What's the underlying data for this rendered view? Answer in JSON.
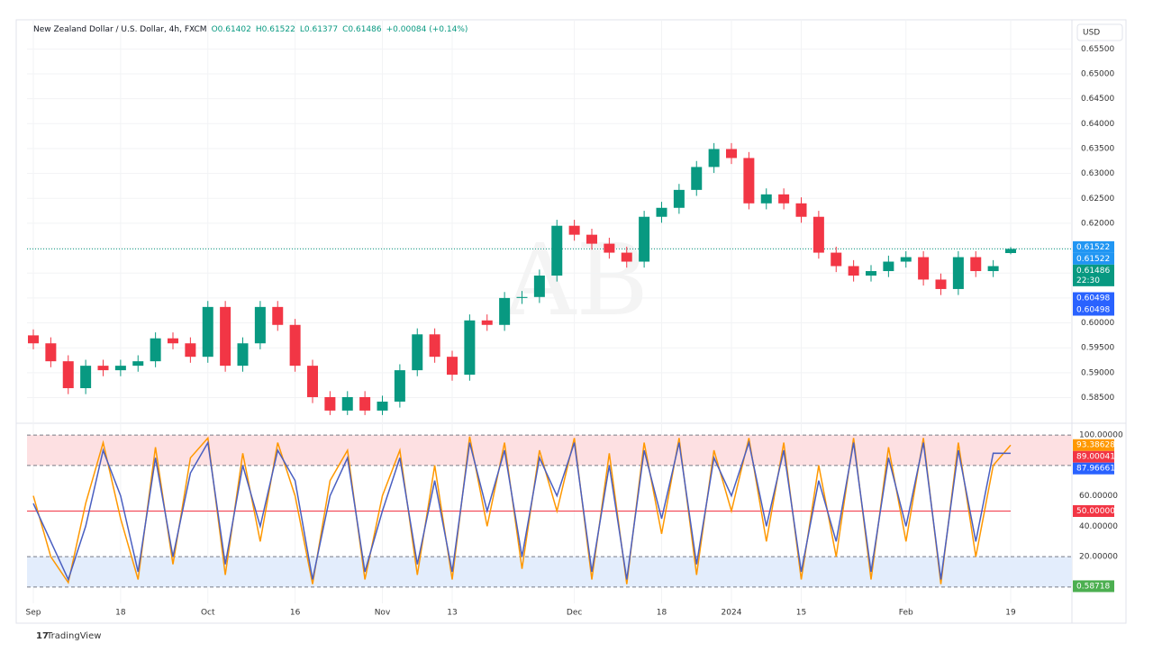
{
  "header": {
    "symbol": "New Zealand Dollar / U.S. Dollar, 4h, FXCM",
    "ohlc": [
      "O0.61402",
      "H0.61522",
      "L0.61377",
      "C0.61486"
    ],
    "change": "+0.00084 (+0.14%)"
  },
  "currency": "USD",
  "watermark": "AB",
  "brand": "TradingView",
  "chart_data": [
    {
      "type": "candlestick",
      "categories": [
        "Sep",
        null,
        null,
        null,
        null,
        "18",
        null,
        null,
        null,
        null,
        "Oct",
        null,
        null,
        null,
        null,
        "16",
        null,
        null,
        null,
        null,
        "Nov",
        null,
        null,
        null,
        "13",
        null,
        null,
        null,
        null,
        null,
        null,
        "Dec",
        null,
        null,
        null,
        null,
        "18",
        null,
        null,
        null,
        "2024",
        null,
        null,
        null,
        "15",
        null,
        null,
        null,
        null,
        null,
        "Feb",
        null,
        null,
        null,
        null,
        null,
        "19"
      ],
      "open": [
        0.5975,
        0.5959,
        0.5923,
        0.5869,
        0.5914,
        0.5905,
        0.5914,
        0.5923,
        0.5969,
        0.5959,
        0.5932,
        0.6032,
        0.5914,
        0.5959,
        0.6032,
        0.5996,
        0.5914,
        0.5851,
        0.5824,
        0.5851,
        0.5824,
        0.5842,
        0.5905,
        0.5977,
        0.5932,
        0.5896,
        0.6005,
        0.5996,
        0.605,
        0.6052,
        0.6095,
        0.6195,
        0.6177,
        0.6159,
        0.6141,
        0.6123,
        0.6213,
        0.6231,
        0.6267,
        0.6313,
        0.6349,
        0.6331,
        0.624,
        0.6258,
        0.624,
        0.6213,
        0.6141,
        0.6114,
        0.6095,
        0.6104,
        0.6123,
        0.6132,
        0.6087,
        0.6068,
        0.6132,
        0.6104,
        0.61402
      ],
      "high": [
        0.5987,
        0.5971,
        0.5935,
        0.5926,
        0.5926,
        0.5926,
        0.5935,
        0.5981,
        0.5981,
        0.5971,
        0.6044,
        0.6044,
        0.5971,
        0.6044,
        0.6044,
        0.6008,
        0.5926,
        0.5863,
        0.5863,
        0.5863,
        0.5854,
        0.5917,
        0.5989,
        0.5989,
        0.5944,
        0.6017,
        0.6017,
        0.6062,
        0.6064,
        0.6107,
        0.6207,
        0.6207,
        0.6189,
        0.6171,
        0.6153,
        0.6225,
        0.6243,
        0.6279,
        0.6325,
        0.6361,
        0.6361,
        0.6343,
        0.627,
        0.627,
        0.6252,
        0.6225,
        0.6153,
        0.6126,
        0.6116,
        0.6135,
        0.6144,
        0.6144,
        0.6099,
        0.6144,
        0.6144,
        0.6126,
        0.61522
      ],
      "low": [
        0.5947,
        0.5911,
        0.5857,
        0.5857,
        0.5893,
        0.5893,
        0.5902,
        0.5911,
        0.5947,
        0.592,
        0.592,
        0.5902,
        0.5902,
        0.5947,
        0.5984,
        0.5902,
        0.5839,
        0.5815,
        0.5815,
        0.5815,
        0.5815,
        0.583,
        0.5893,
        0.592,
        0.5884,
        0.5884,
        0.5984,
        0.5984,
        0.6038,
        0.604,
        0.6083,
        0.6165,
        0.6147,
        0.6129,
        0.6111,
        0.6111,
        0.6201,
        0.6219,
        0.6255,
        0.6301,
        0.6319,
        0.6228,
        0.6228,
        0.6228,
        0.6201,
        0.6129,
        0.6102,
        0.6083,
        0.6083,
        0.6092,
        0.6111,
        0.6075,
        0.6056,
        0.6056,
        0.6092,
        0.6092,
        0.61377
      ],
      "close": [
        0.5959,
        0.5923,
        0.5869,
        0.5914,
        0.5905,
        0.5914,
        0.5923,
        0.5969,
        0.5959,
        0.5932,
        0.6032,
        0.5914,
        0.5959,
        0.6032,
        0.5996,
        0.5914,
        0.5851,
        0.5824,
        0.5851,
        0.5824,
        0.5842,
        0.5905,
        0.5977,
        0.5932,
        0.5896,
        0.6005,
        0.5996,
        0.605,
        0.6052,
        0.6095,
        0.6195,
        0.6177,
        0.6159,
        0.6141,
        0.6123,
        0.6213,
        0.6231,
        0.6267,
        0.6313,
        0.6349,
        0.6331,
        0.624,
        0.6258,
        0.624,
        0.6213,
        0.6141,
        0.6114,
        0.6095,
        0.6104,
        0.6123,
        0.6132,
        0.6087,
        0.6068,
        0.6132,
        0.6104,
        0.6114,
        0.61486
      ],
      "up_color": "#089981",
      "down_color": "#f23645",
      "ylim": [
        0.5813,
        0.6603
      ],
      "yticks": [
        {
          "value": 0.585,
          "label": "0.58500"
        },
        {
          "value": 0.59,
          "label": "0.59000"
        },
        {
          "value": 0.595,
          "label": "0.59500"
        },
        {
          "value": 0.6,
          "label": "0.60000"
        },
        {
          "value": 0.605,
          "label": "0.60500"
        },
        {
          "value": 0.61,
          "label": "0.61000"
        },
        {
          "value": 0.615,
          "label": "0.61500"
        },
        {
          "value": 0.62,
          "label": "0.62000"
        },
        {
          "value": 0.625,
          "label": "0.62500"
        },
        {
          "value": 0.63,
          "label": "0.63000"
        },
        {
          "value": 0.635,
          "label": "0.63500"
        },
        {
          "value": 0.64,
          "label": "0.64000"
        },
        {
          "value": 0.645,
          "label": "0.64500"
        },
        {
          "value": 0.65,
          "label": "0.65000"
        },
        {
          "value": 0.655,
          "label": "0.65500"
        }
      ],
      "price_labels": [
        {
          "value": 0.61522,
          "label": "0.61522",
          "color": "#2196f3"
        },
        {
          "value": 0.61522,
          "label": "0.61522",
          "color": "#2196f3"
        },
        {
          "value": 0.61486,
          "label": "0.61486",
          "sub": "22:30",
          "color": "#089981"
        },
        {
          "value": 0.60498,
          "label": "0.60498",
          "color": "#2962ff"
        },
        {
          "value": 0.60498,
          "label": "0.60498",
          "color": "#2962ff"
        }
      ]
    },
    {
      "type": "oscillator",
      "series": [
        {
          "color": "#ff9800",
          "values": [
            60,
            20,
            3,
            55,
            95,
            45,
            5,
            92,
            15,
            85,
            98,
            8,
            88,
            30,
            95,
            60,
            2,
            70,
            90,
            5,
            60,
            90,
            8,
            80,
            5,
            99,
            40,
            95,
            12,
            90,
            50,
            98,
            5,
            88,
            2,
            95,
            35,
            98,
            8,
            90,
            50,
            98,
            30,
            95,
            5,
            80,
            20,
            98,
            5,
            92,
            30,
            98,
            2,
            95,
            20,
            80,
            93.38628
          ]
        },
        {
          "color": "#4a5fc1",
          "values": [
            55,
            30,
            5,
            40,
            90,
            60,
            10,
            85,
            20,
            75,
            95,
            15,
            80,
            40,
            90,
            70,
            5,
            60,
            85,
            10,
            50,
            85,
            15,
            70,
            10,
            95,
            50,
            90,
            20,
            85,
            60,
            95,
            10,
            80,
            5,
            90,
            45,
            95,
            15,
            85,
            60,
            95,
            40,
            90,
            10,
            70,
            30,
            95,
            10,
            85,
            40,
            95,
            5,
            90,
            30,
            88,
            87.96661
          ]
        }
      ],
      "ylim": [
        -3,
        103
      ],
      "yticks": [
        {
          "value": 100,
          "label": "100.00000"
        },
        {
          "value": 60,
          "label": "60.00000"
        },
        {
          "value": 40,
          "label": "40.00000"
        },
        {
          "value": 20,
          "label": "20.00000"
        }
      ],
      "levels": [
        100,
        80,
        20,
        0
      ],
      "bands": [
        {
          "from": 80,
          "to": 100,
          "color": "#fde0e2"
        },
        {
          "from": 0,
          "to": 20,
          "color": "#e3edfc"
        }
      ],
      "value_labels": [
        {
          "value": 93.38628,
          "label": "93.38628",
          "color": "#ff9800"
        },
        {
          "value": 89.00041,
          "label": "89.00041",
          "color": "#f23645"
        },
        {
          "value": 87.96661,
          "label": "87.96661",
          "color": "#2962ff"
        },
        {
          "value": 50,
          "label": "50.00000",
          "color": "#f23645"
        },
        {
          "value": 0.58718,
          "label": "0.58718",
          "color": "#4caf50"
        }
      ]
    }
  ]
}
